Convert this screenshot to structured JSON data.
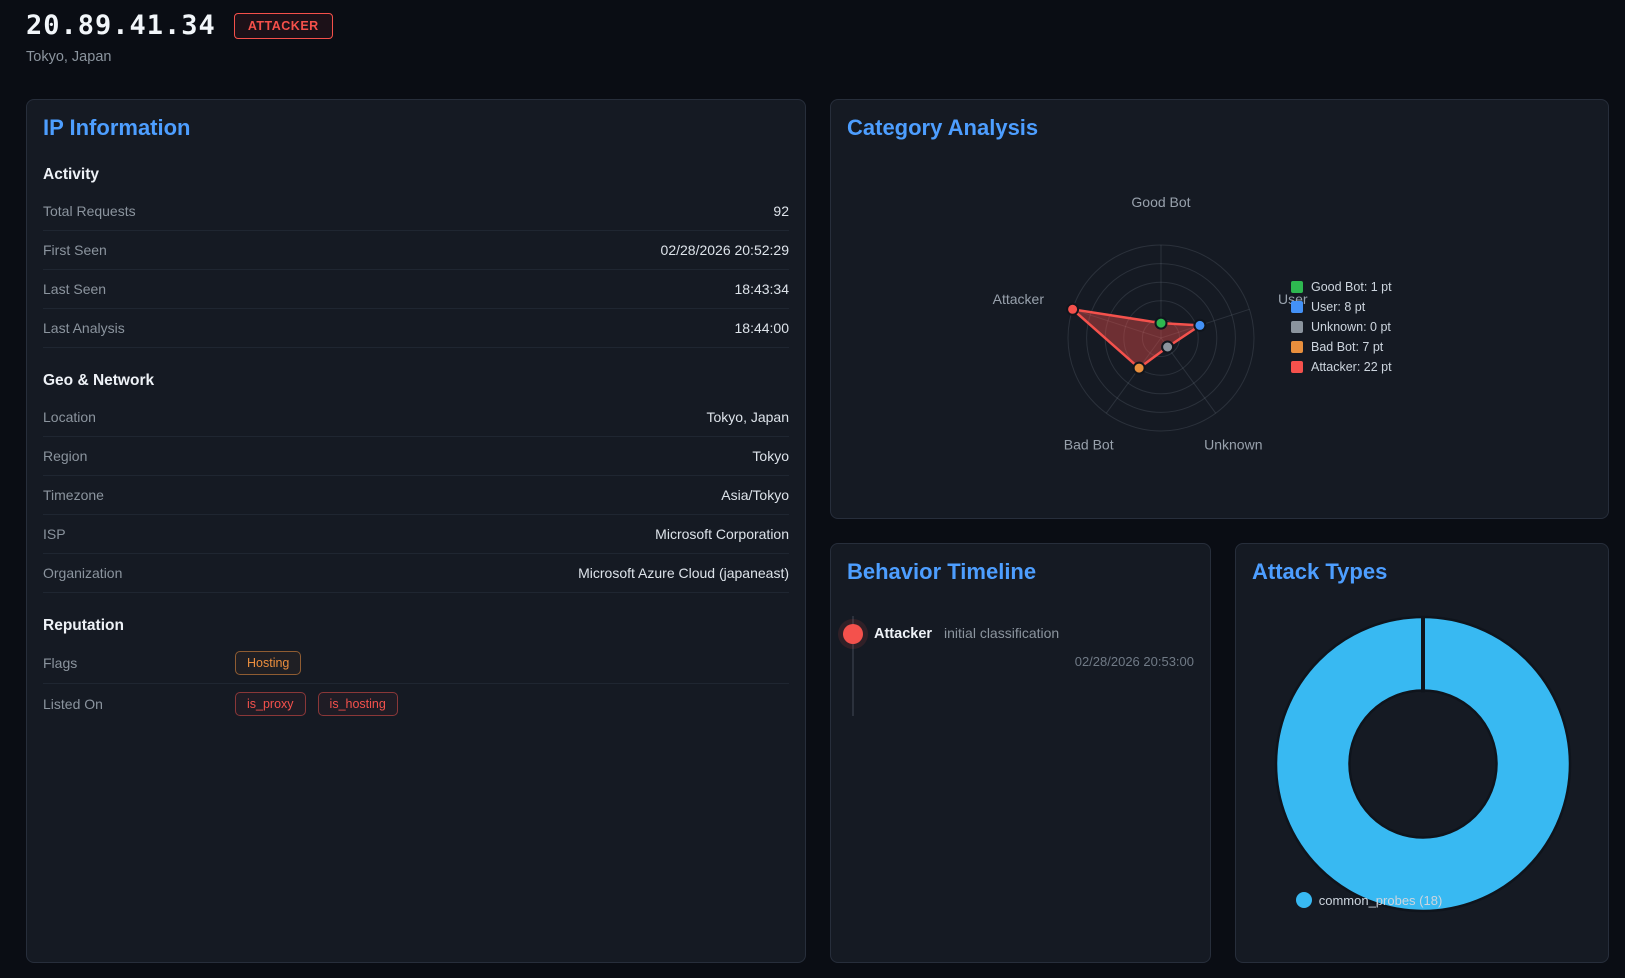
{
  "header": {
    "ip": "20.89.41.34",
    "badge": "ATTACKER",
    "location": "Tokyo, Japan"
  },
  "colors": {
    "accent_blue": "#4d9eff",
    "red": "#f4514c",
    "orange": "#eb8e3e",
    "donut_blue": "#38b9f2"
  },
  "panels": {
    "ip_information": {
      "title": "IP Information",
      "sections": [
        {
          "title": "Activity",
          "rows": [
            {
              "label": "Total Requests",
              "value": "92"
            },
            {
              "label": "First Seen",
              "value": "02/28/2026 20:52:29"
            },
            {
              "label": "Last Seen",
              "value": "18:43:34"
            },
            {
              "label": "Last Analysis",
              "value": "18:44:00"
            }
          ]
        },
        {
          "title": "Geo & Network",
          "rows": [
            {
              "label": "Location",
              "value": "Tokyo, Japan"
            },
            {
              "label": "Region",
              "value": "Tokyo"
            },
            {
              "label": "Timezone",
              "value": "Asia/Tokyo"
            },
            {
              "label": "ISP",
              "value": "Microsoft Corporation"
            },
            {
              "label": "Organization",
              "value": "Microsoft Azure Cloud (japaneast)"
            }
          ]
        },
        {
          "title": "Reputation",
          "rows": [
            {
              "label": "Flags",
              "badges": [
                {
                  "text": "Hosting",
                  "style": "orange"
                }
              ]
            },
            {
              "label": "Listed On",
              "badges": [
                {
                  "text": "is_proxy",
                  "style": "red"
                },
                {
                  "text": "is_hosting",
                  "style": "red"
                }
              ]
            }
          ]
        }
      ]
    },
    "category_analysis": {
      "title": "Category Analysis"
    },
    "behavior_timeline": {
      "title": "Behavior Timeline",
      "events": [
        {
          "category": "Attacker",
          "description": "initial classification",
          "timestamp": "02/28/2026 20:53:00",
          "color": "#f4514c"
        }
      ]
    },
    "attack_types": {
      "title": "Attack Types"
    }
  },
  "chart_data": [
    {
      "type": "radar",
      "title": "Category Analysis",
      "categories": [
        "Good Bot",
        "User",
        "Unknown",
        "Bad Bot",
        "Attacker"
      ],
      "values": [
        1,
        8,
        0,
        7,
        22
      ],
      "unit": "pt",
      "colors": [
        "#2eb850",
        "#4391f7",
        "#8b949e",
        "#e88f3d",
        "#f4514c"
      ],
      "legend": [
        "Good Bot: 1 pt",
        "User: 8 pt",
        "Unknown: 0 pt",
        "Bad Bot: 7 pt",
        "Attacker: 22 pt"
      ],
      "legend_position": "right",
      "axis_range": [
        -3,
        22
      ],
      "rings": 5,
      "grid": true
    },
    {
      "type": "donut",
      "title": "Attack Types",
      "categories": [
        "common_probes"
      ],
      "values": [
        18
      ],
      "colors": [
        "#38b9f2"
      ],
      "legend": [
        "common_probes (18)"
      ],
      "legend_position": "bottom"
    }
  ]
}
